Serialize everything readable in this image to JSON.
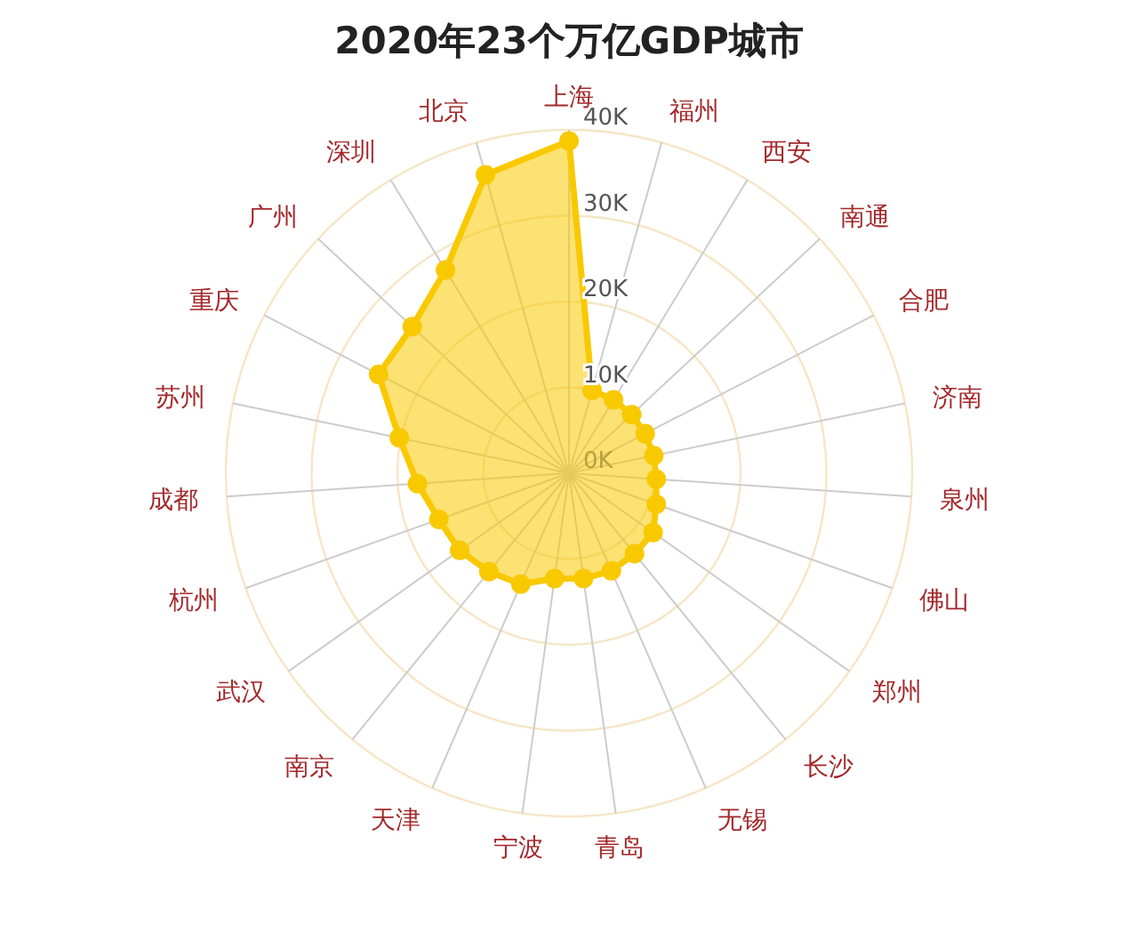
{
  "chart_data": {
    "type": "radar",
    "title": "2020年23个万亿GDP城市",
    "categories": [
      "上海",
      "福州",
      "西安",
      "南通",
      "合肥",
      "济南",
      "泉州",
      "佛山",
      "郑州",
      "长沙",
      "无锡",
      "青岛",
      "宁波",
      "天津",
      "南京",
      "武汉",
      "杭州",
      "成都",
      "苏州",
      "重庆",
      "广州",
      "深圳",
      "北京"
    ],
    "series": [
      {
        "color": "#f9c900",
        "values": [
          38700,
          10000,
          10000,
          10000,
          10000,
          10100,
          10200,
          10800,
          12000,
          12100,
          12400,
          12400,
          12400,
          14100,
          14800,
          15600,
          16100,
          17700,
          20200,
          25000,
          25000,
          27700,
          36100
        ]
      }
    ],
    "ylim": [
      0,
      40000
    ],
    "yticks": [
      {
        "value": 0,
        "label": "0K"
      },
      {
        "value": 10000,
        "label": "10K"
      },
      {
        "value": 20000,
        "label": "20K"
      },
      {
        "value": 30000,
        "label": "30K"
      },
      {
        "value": 40000,
        "label": "40K"
      }
    ],
    "grid": true,
    "marker": "circle",
    "line_style": "solid"
  }
}
